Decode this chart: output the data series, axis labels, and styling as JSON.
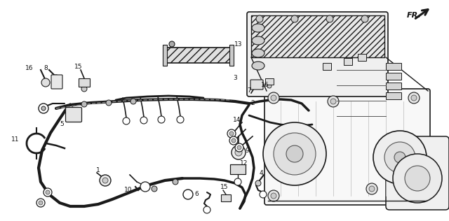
{
  "background_color": "#ffffff",
  "fig_width": 6.4,
  "fig_height": 3.16,
  "dpi": 100,
  "image_b64": ""
}
